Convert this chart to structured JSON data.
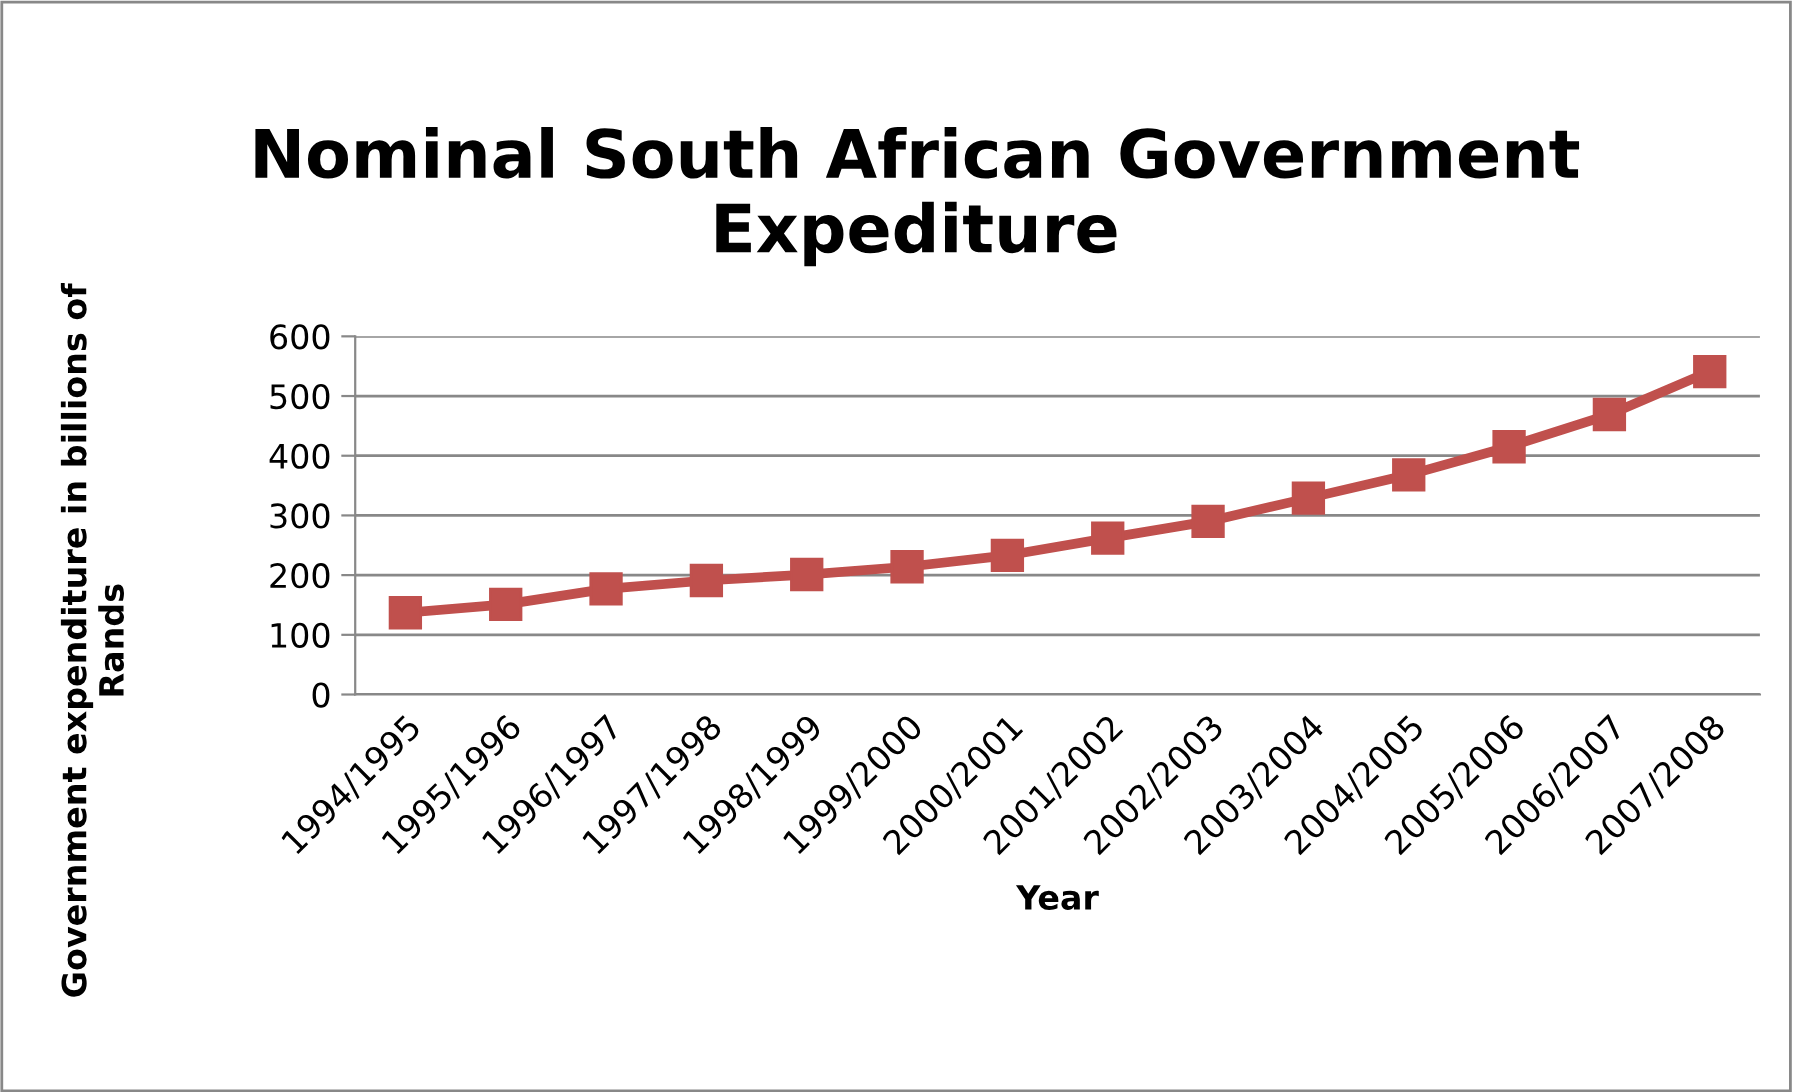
{
  "chart_data": {
    "type": "line",
    "title": "Nominal South African Government\nExpediture",
    "xlabel": "Year",
    "ylabel": "Government expenditure in billions of\nRands",
    "categories": [
      "1994/1995",
      "1995/1996",
      "1996/1997",
      "1997/1998",
      "1998/1999",
      "1999/2000",
      "2000/2001",
      "2001/2002",
      "2002/2003",
      "2003/2004",
      "2004/2005",
      "2005/2006",
      "2006/2007",
      "2007/2008"
    ],
    "series": [
      {
        "color": "#c0504d",
        "values": [
          137,
          151,
          177,
          191,
          201,
          214,
          233,
          262,
          290,
          329,
          368,
          415,
          469,
          541
        ]
      }
    ],
    "ylim": [
      0,
      600
    ],
    "yticks": [
      0,
      100,
      200,
      300,
      400,
      500,
      600
    ],
    "grid": "y",
    "marker": "square",
    "line_style": "solid",
    "legend": false
  }
}
